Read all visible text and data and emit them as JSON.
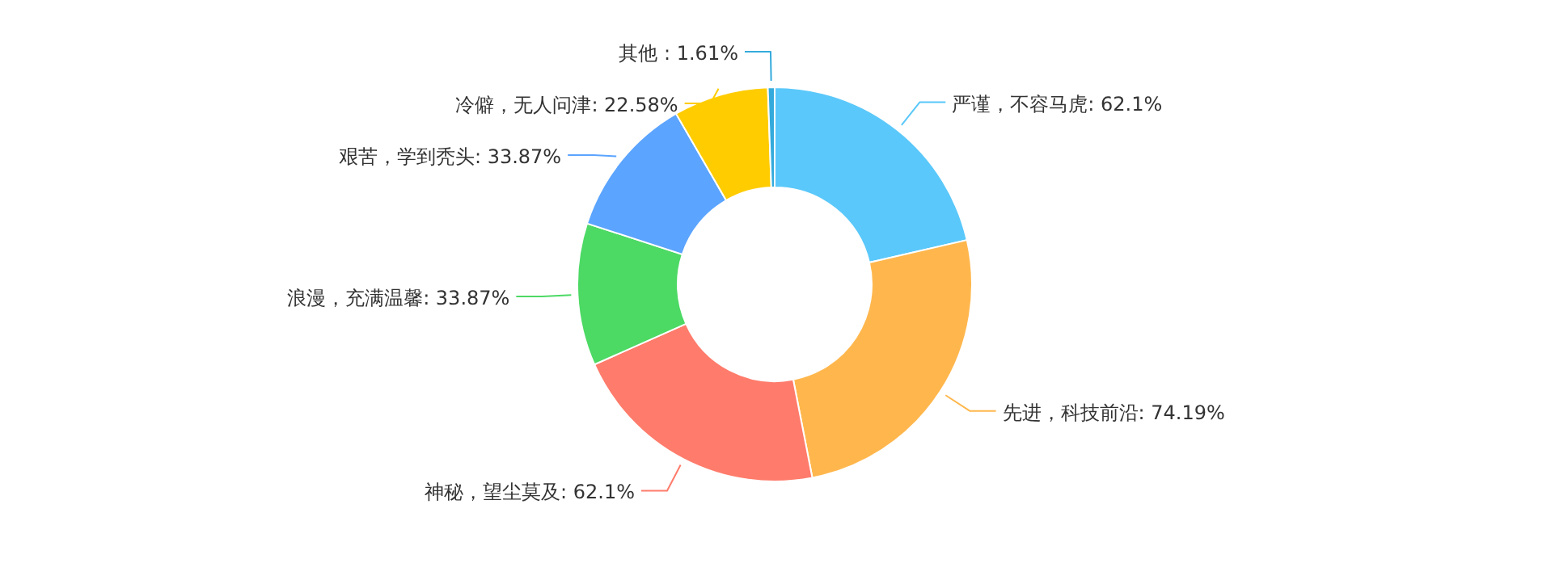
{
  "chart_data": {
    "type": "donut",
    "categories": [
      "严谨，不容马虎",
      "先进，科技前沿",
      "神秘，望尘莫及",
      "浪漫，充满温馨",
      "艰苦，学到秃头",
      "冷僻，无人问津",
      "其他"
    ],
    "values": [
      62.1,
      74.19,
      62.1,
      33.87,
      33.87,
      22.58,
      1.61
    ],
    "colors": [
      "#5ac8fa",
      "#ffb74d",
      "#ff7b6b",
      "#4cd964",
      "#5ba4ff",
      "#ffcc00",
      "#34aadc"
    ],
    "value_labels": [
      ": 62.1%",
      ": 74.19%",
      ": 62.1%",
      ": 33.87%",
      ": 33.87%",
      ": 22.58%",
      " : 1.61%"
    ]
  }
}
